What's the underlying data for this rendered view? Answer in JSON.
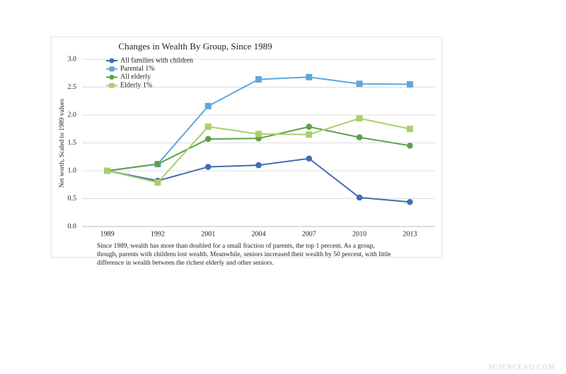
{
  "chart_data": {
    "type": "line",
    "title": "Changes in Wealth By Group, Since 1989",
    "y_label": "Net worth, Scaled to 1989 values",
    "categories": [
      "1989",
      "1992",
      "2001",
      "2004",
      "2007",
      "2010",
      "2013"
    ],
    "series": [
      {
        "name": "All families with children",
        "color": "#416db2",
        "marker": "circle",
        "values": [
          1.0,
          0.82,
          1.07,
          1.1,
          1.22,
          0.52,
          0.44
        ]
      },
      {
        "name": "Parental 1%",
        "color": "#5fa6dc",
        "marker": "square",
        "values": [
          1.0,
          1.12,
          2.16,
          2.64,
          2.68,
          2.56,
          2.55
        ]
      },
      {
        "name": "All elderly",
        "color": "#5f9f4c",
        "marker": "circle",
        "values": [
          1.0,
          1.12,
          1.57,
          1.58,
          1.79,
          1.6,
          1.45
        ]
      },
      {
        "name": "Elderly 1%",
        "color": "#a9cf6b",
        "marker": "square",
        "values": [
          1.0,
          0.79,
          1.79,
          1.66,
          1.65,
          1.94,
          1.75
        ]
      }
    ],
    "ylim": [
      0,
      3
    ],
    "yticks": [
      {
        "value": 0,
        "label": "0.0"
      },
      0.5,
      {
        "value": 1,
        "label": "1.0"
      },
      1.5,
      {
        "value": 2,
        "label": "2.0"
      },
      2.5,
      {
        "value": 3,
        "label": "3.0"
      }
    ],
    "grid": true,
    "caption": [
      "Since 1989, wealth has more than doubled for a small fraction of parents, the top 1 percent. As a group,",
      "though, parents with children lost wealth. Meanwhile, seniors increased their wealth by 50 percent, with little",
      "difference in wealth between the richest elderly and other seniors."
    ],
    "watermark": "SCIENCEAQ.COM"
  }
}
